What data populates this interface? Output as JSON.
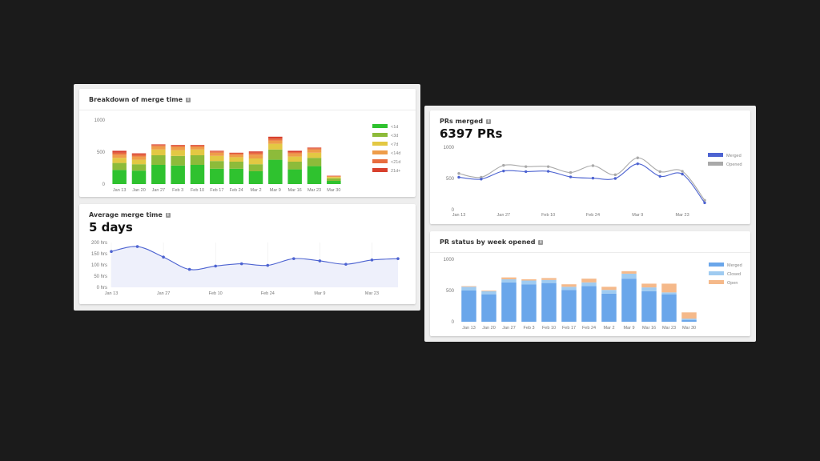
{
  "colors": {
    "background": "#1b1b1b",
    "merge_buckets": [
      "#2fc22f",
      "#8dbb3a",
      "#e3c843",
      "#ee9d4a",
      "#e86d3f",
      "#d8402d"
    ],
    "line_merged": "#4d63d1",
    "line_opened": "#a9a9a9",
    "status_merged": "#6aa6ea",
    "status_closed": "#9fcbf1",
    "status_open": "#f5b98a"
  },
  "cards": {
    "merge_breakdown": {
      "title": "Breakdown of merge time"
    },
    "avg_merge": {
      "title": "Average merge time",
      "value": "5 days"
    },
    "prs_merged": {
      "title": "PRs merged",
      "value": "6397 PRs"
    },
    "pr_status": {
      "title": "PR status by week opened"
    }
  },
  "chart_data": [
    {
      "id": "merge_breakdown",
      "type": "bar",
      "stacked": true,
      "categories": [
        "Jan 13",
        "Jan 20",
        "Jan 27",
        "Feb 3",
        "Feb 10",
        "Feb 17",
        "Feb 24",
        "Mar 2",
        "Mar 9",
        "Mar 16",
        "Mar 23",
        "Mar 30"
      ],
      "series": [
        {
          "name": "<1d",
          "values": [
            220,
            210,
            300,
            290,
            300,
            240,
            240,
            200,
            380,
            230,
            280,
            50
          ]
        },
        {
          "name": "<3d",
          "values": [
            110,
            100,
            150,
            150,
            150,
            120,
            110,
            110,
            160,
            120,
            130,
            40
          ]
        },
        {
          "name": "<7d",
          "values": [
            80,
            70,
            90,
            90,
            90,
            80,
            70,
            90,
            90,
            80,
            80,
            20
          ]
        },
        {
          "name": "<14d",
          "values": [
            50,
            50,
            50,
            50,
            40,
            50,
            40,
            60,
            50,
            50,
            50,
            10
          ]
        },
        {
          "name": "<21d",
          "values": [
            30,
            30,
            20,
            20,
            20,
            20,
            20,
            30,
            30,
            20,
            20,
            5
          ]
        },
        {
          "name": "21d+",
          "values": [
            30,
            20,
            10,
            10,
            10,
            10,
            10,
            20,
            30,
            20,
            10,
            5
          ]
        }
      ],
      "y_ticks": [
        "1000",
        "500",
        "0"
      ],
      "ylim": [
        0,
        1000
      ],
      "legend": "right"
    },
    {
      "id": "avg_merge",
      "type": "area",
      "x": [
        "Jan 13",
        "Jan 20",
        "Jan 27",
        "Feb 3",
        "Feb 10",
        "Feb 17",
        "Feb 24",
        "Mar 2",
        "Mar 9",
        "Mar 16",
        "Mar 23",
        "Mar 30"
      ],
      "x_ticks": [
        "Jan 13",
        "Jan 27",
        "Feb 10",
        "Feb 24",
        "Mar 9",
        "Mar 23"
      ],
      "values": [
        160,
        182,
        135,
        80,
        95,
        105,
        98,
        128,
        118,
        103,
        122,
        128
      ],
      "y_ticks": [
        "200 hrs",
        "150 hrs",
        "100 hrs",
        "50 hrs",
        "0 hrs"
      ],
      "ylim": [
        0,
        200
      ]
    },
    {
      "id": "prs_merged",
      "type": "line",
      "x": [
        "Jan 13",
        "Jan 20",
        "Jan 27",
        "Feb 3",
        "Feb 10",
        "Feb 17",
        "Feb 24",
        "Mar 2",
        "Mar 9",
        "Mar 16",
        "Mar 23",
        "Mar 30"
      ],
      "x_ticks": [
        "Jan 13",
        "Jan 27",
        "Feb 10",
        "Feb 24",
        "Mar 9",
        "Mar 23"
      ],
      "series": [
        {
          "name": "Merged",
          "values": [
            520,
            490,
            620,
            610,
            615,
            525,
            505,
            500,
            735,
            535,
            570,
            110
          ]
        },
        {
          "name": "Opened",
          "values": [
            580,
            520,
            710,
            690,
            690,
            595,
            705,
            560,
            830,
            610,
            615,
            150
          ]
        }
      ],
      "y_ticks": [
        "1000",
        "500",
        "0"
      ],
      "ylim": [
        0,
        1000
      ],
      "legend": "right"
    },
    {
      "id": "pr_status",
      "type": "bar",
      "stacked": true,
      "categories": [
        "Jan 13",
        "Jan 20",
        "Jan 27",
        "Feb 3",
        "Feb 10",
        "Feb 17",
        "Feb 24",
        "Mar 2",
        "Mar 9",
        "Mar 16",
        "Mar 23",
        "Mar 30"
      ],
      "series": [
        {
          "name": "Merged",
          "values": [
            500,
            440,
            630,
            600,
            620,
            510,
            570,
            450,
            690,
            490,
            440,
            30
          ]
        },
        {
          "name": "Closed",
          "values": [
            60,
            50,
            50,
            60,
            50,
            50,
            60,
            60,
            80,
            60,
            30,
            20
          ]
        },
        {
          "name": "Open",
          "values": [
            10,
            10,
            30,
            20,
            30,
            40,
            60,
            50,
            40,
            60,
            140,
            100
          ]
        }
      ],
      "y_ticks": [
        "1000",
        "500",
        "0"
      ],
      "ylim": [
        0,
        1000
      ],
      "legend": "right"
    }
  ]
}
